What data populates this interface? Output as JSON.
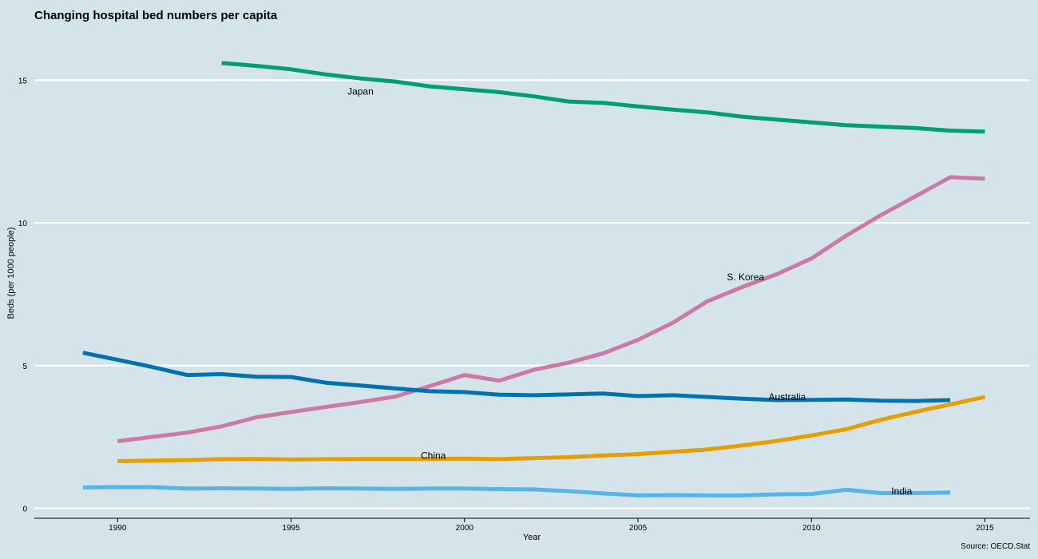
{
  "chart_data": {
    "type": "line",
    "title": "Changing hospital bed numbers per capita",
    "xlabel": "Year",
    "ylabel": "Beds (per 1000 people)",
    "source": "Source: OECD.Stat",
    "xlim": [
      1987.6,
      2016.3
    ],
    "ylim": [
      -0.35,
      16.8
    ],
    "x_ticks": [
      1990,
      1995,
      2000,
      2005,
      2010,
      2015
    ],
    "y_ticks": [
      0,
      5,
      10,
      15
    ],
    "grid": "horizontal",
    "legend": "direct labels",
    "series": [
      {
        "name": "Japan",
        "color": "#009e73",
        "label_at": [
          1997,
          14.6
        ],
        "points": [
          [
            1993,
            15.6
          ],
          [
            1994,
            15.5
          ],
          [
            1995,
            15.38
          ],
          [
            1996,
            15.2
          ],
          [
            1997,
            15.06
          ],
          [
            1998,
            14.95
          ],
          [
            1999,
            14.78
          ],
          [
            2000,
            14.68
          ],
          [
            2001,
            14.58
          ],
          [
            2002,
            14.43
          ],
          [
            2003,
            14.25
          ],
          [
            2004,
            14.2
          ],
          [
            2005,
            14.08
          ],
          [
            2006,
            13.97
          ],
          [
            2007,
            13.87
          ],
          [
            2008,
            13.72
          ],
          [
            2009,
            13.62
          ],
          [
            2010,
            13.52
          ],
          [
            2011,
            13.42
          ],
          [
            2012,
            13.37
          ],
          [
            2013,
            13.32
          ],
          [
            2014,
            13.23
          ],
          [
            2015,
            13.2
          ]
        ]
      },
      {
        "name": "S. Korea",
        "color": "#cc79a7",
        "label_at": [
          2008.1,
          8.1
        ],
        "points": [
          [
            1990,
            2.35
          ],
          [
            1991,
            2.5
          ],
          [
            1992,
            2.65
          ],
          [
            1993,
            2.87
          ],
          [
            1994,
            3.19
          ],
          [
            1995,
            3.37
          ],
          [
            1996,
            3.55
          ],
          [
            1997,
            3.72
          ],
          [
            1998,
            3.91
          ],
          [
            1999,
            4.28
          ],
          [
            2000,
            4.67
          ],
          [
            2001,
            4.47
          ],
          [
            2002,
            4.85
          ],
          [
            2003,
            5.1
          ],
          [
            2004,
            5.43
          ],
          [
            2005,
            5.9
          ],
          [
            2006,
            6.5
          ],
          [
            2007,
            7.25
          ],
          [
            2008,
            7.75
          ],
          [
            2009,
            8.2
          ],
          [
            2010,
            8.75
          ],
          [
            2011,
            9.55
          ],
          [
            2012,
            10.27
          ],
          [
            2013,
            10.93
          ],
          [
            2014,
            11.6
          ],
          [
            2015,
            11.55
          ]
        ]
      },
      {
        "name": "Australia",
        "color": "#0072b2",
        "label_at": [
          2009.3,
          3.9
        ],
        "points": [
          [
            1989,
            5.45
          ],
          [
            1990,
            5.2
          ],
          [
            1991,
            4.95
          ],
          [
            1992,
            4.67
          ],
          [
            1993,
            4.7
          ],
          [
            1994,
            4.61
          ],
          [
            1995,
            4.6
          ],
          [
            1996,
            4.4
          ],
          [
            1997,
            4.3
          ],
          [
            1998,
            4.2
          ],
          [
            1999,
            4.1
          ],
          [
            2000,
            4.07
          ],
          [
            2001,
            3.98
          ],
          [
            2002,
            3.96
          ],
          [
            2003,
            3.99
          ],
          [
            2004,
            4.02
          ],
          [
            2005,
            3.93
          ],
          [
            2006,
            3.96
          ],
          [
            2007,
            3.9
          ],
          [
            2008,
            3.84
          ],
          [
            2009,
            3.79
          ],
          [
            2010,
            3.8
          ],
          [
            2011,
            3.81
          ],
          [
            2012,
            3.77
          ],
          [
            2013,
            3.76
          ],
          [
            2014,
            3.79
          ]
        ]
      },
      {
        "name": "China",
        "color": "#e69f00",
        "label_at": [
          1999.1,
          1.85
        ],
        "points": [
          [
            1990,
            1.65
          ],
          [
            1991,
            1.67
          ],
          [
            1992,
            1.69
          ],
          [
            1993,
            1.72
          ],
          [
            1994,
            1.73
          ],
          [
            1995,
            1.71
          ],
          [
            1996,
            1.72
          ],
          [
            1997,
            1.73
          ],
          [
            1998,
            1.73
          ],
          [
            1999,
            1.73
          ],
          [
            2000,
            1.74
          ],
          [
            2001,
            1.72
          ],
          [
            2002,
            1.76
          ],
          [
            2003,
            1.79
          ],
          [
            2004,
            1.85
          ],
          [
            2005,
            1.9
          ],
          [
            2006,
            1.98
          ],
          [
            2007,
            2.06
          ],
          [
            2008,
            2.2
          ],
          [
            2009,
            2.36
          ],
          [
            2010,
            2.55
          ],
          [
            2011,
            2.77
          ],
          [
            2012,
            3.1
          ],
          [
            2013,
            3.38
          ],
          [
            2014,
            3.64
          ],
          [
            2015,
            3.9
          ]
        ]
      },
      {
        "name": "India",
        "color": "#56b4e9",
        "label_at": [
          2012.6,
          0.6
        ],
        "points": [
          [
            1989,
            0.73
          ],
          [
            1990,
            0.74
          ],
          [
            1991,
            0.74
          ],
          [
            1992,
            0.69
          ],
          [
            1993,
            0.7
          ],
          [
            1994,
            0.69
          ],
          [
            1995,
            0.68
          ],
          [
            1996,
            0.7
          ],
          [
            1997,
            0.69
          ],
          [
            1998,
            0.68
          ],
          [
            1999,
            0.69
          ],
          [
            2000,
            0.69
          ],
          [
            2001,
            0.67
          ],
          [
            2002,
            0.66
          ],
          [
            2003,
            0.6
          ],
          [
            2004,
            0.52
          ],
          [
            2005,
            0.45
          ],
          [
            2006,
            0.46
          ],
          [
            2007,
            0.45
          ],
          [
            2008,
            0.45
          ],
          [
            2009,
            0.49
          ],
          [
            2010,
            0.5
          ],
          [
            2011,
            0.65
          ],
          [
            2012,
            0.53
          ],
          [
            2013,
            0.53
          ],
          [
            2014,
            0.55
          ]
        ]
      }
    ]
  },
  "colors": {
    "background": "#d5e4eb",
    "grid": "#ffffff",
    "axis": "#000000"
  }
}
